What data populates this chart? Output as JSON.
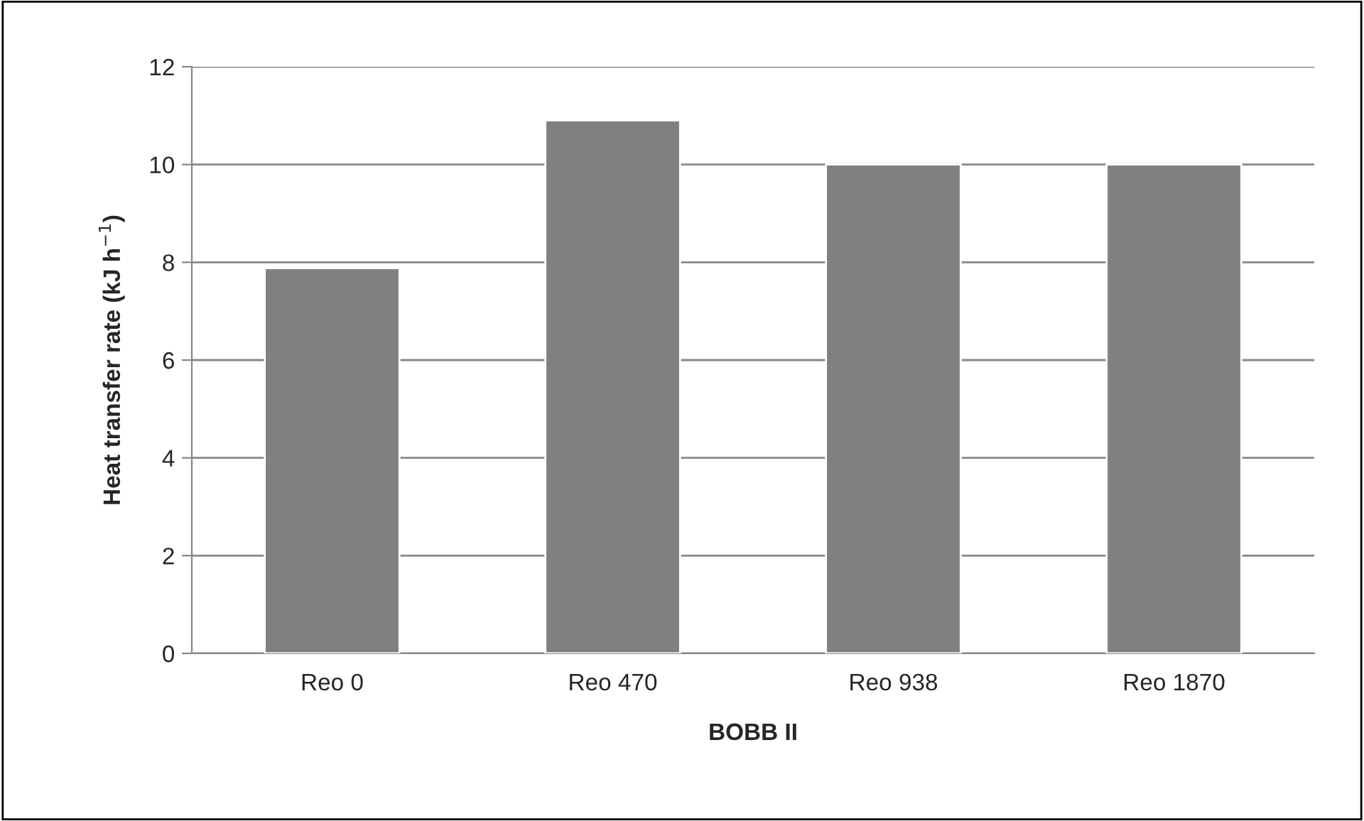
{
  "chart_data": {
    "type": "bar",
    "xlabel": "BOBB II",
    "ylabel": "Heat transfer rate (kJ h$^{−1}$)",
    "categories": [
      "Reo 0",
      "Reo 470",
      "Reo 938",
      "Reo 1870"
    ],
    "values": [
      7.88,
      10.9,
      10.0,
      10.0
    ],
    "color": "#808080",
    "ylim": [
      0,
      12
    ],
    "yticks": [
      0,
      2,
      4,
      6,
      8,
      10,
      12
    ],
    "grid": "y",
    "legend": false
  }
}
